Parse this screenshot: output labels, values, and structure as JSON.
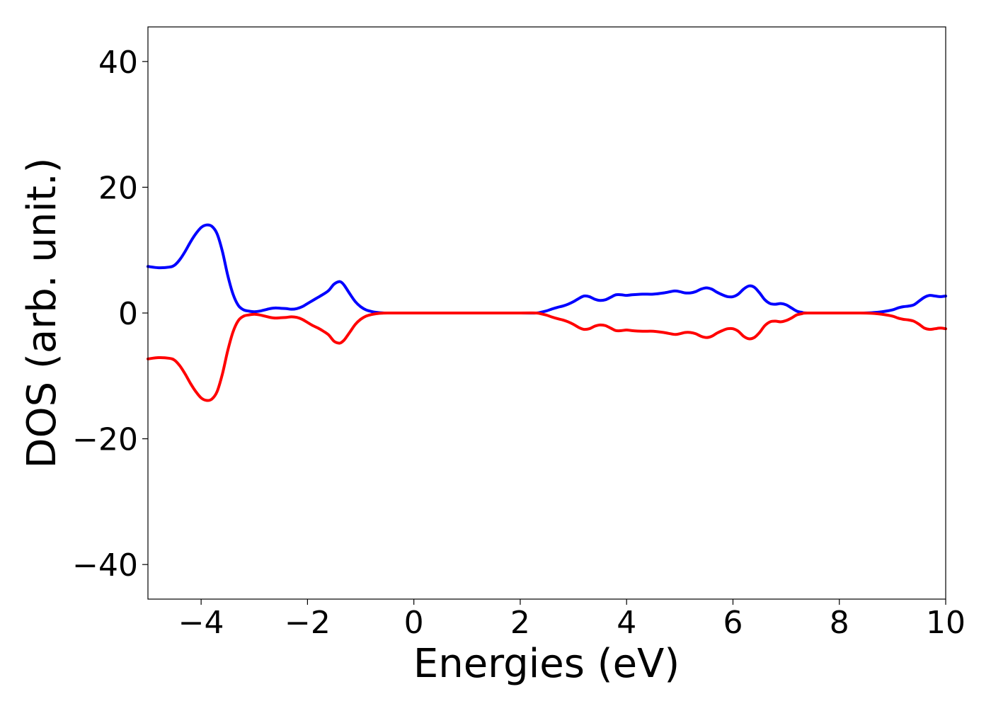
{
  "chart_data": {
    "type": "line",
    "title": "",
    "xlabel": "Energies (eV)",
    "ylabel": "DOS (arb. unit.)",
    "xlim": [
      -5,
      10
    ],
    "ylim": [
      -45.5,
      45.5
    ],
    "grid": false,
    "legend": "none",
    "x_ticks": [
      {
        "value": -4,
        "label": "−4"
      },
      {
        "value": -2,
        "label": "−2"
      },
      {
        "value": 0,
        "label": "0"
      },
      {
        "value": 2,
        "label": "2"
      },
      {
        "value": 4,
        "label": "4"
      },
      {
        "value": 6,
        "label": "6"
      },
      {
        "value": 8,
        "label": "8"
      },
      {
        "value": 10,
        "label": "10"
      }
    ],
    "y_ticks": [
      {
        "value": 40,
        "label": "40"
      },
      {
        "value": 20,
        "label": "20"
      },
      {
        "value": 0,
        "label": "0"
      },
      {
        "value": -20,
        "label": "−20"
      },
      {
        "value": -40,
        "label": "−40"
      }
    ],
    "series": [
      {
        "color": "#0000ff",
        "points": [
          [
            -5.0,
            7.4
          ],
          [
            -4.8,
            7.2
          ],
          [
            -4.6,
            7.3
          ],
          [
            -4.5,
            7.6
          ],
          [
            -4.4,
            8.5
          ],
          [
            -4.3,
            9.8
          ],
          [
            -4.2,
            11.3
          ],
          [
            -4.1,
            12.6
          ],
          [
            -4.0,
            13.6
          ],
          [
            -3.9,
            14.0
          ],
          [
            -3.8,
            13.8
          ],
          [
            -3.7,
            12.6
          ],
          [
            -3.6,
            9.8
          ],
          [
            -3.5,
            6.0
          ],
          [
            -3.4,
            3.0
          ],
          [
            -3.3,
            1.2
          ],
          [
            -3.2,
            0.5
          ],
          [
            -3.1,
            0.3
          ],
          [
            -3.0,
            0.2
          ],
          [
            -2.9,
            0.3
          ],
          [
            -2.8,
            0.5
          ],
          [
            -2.7,
            0.7
          ],
          [
            -2.6,
            0.8
          ],
          [
            -2.5,
            0.75
          ],
          [
            -2.4,
            0.7
          ],
          [
            -2.3,
            0.6
          ],
          [
            -2.2,
            0.7
          ],
          [
            -2.1,
            1.0
          ],
          [
            -2.0,
            1.5
          ],
          [
            -1.9,
            2.0
          ],
          [
            -1.8,
            2.5
          ],
          [
            -1.7,
            3.0
          ],
          [
            -1.6,
            3.6
          ],
          [
            -1.5,
            4.6
          ],
          [
            -1.4,
            5.0
          ],
          [
            -1.35,
            4.8
          ],
          [
            -1.3,
            4.3
          ],
          [
            -1.2,
            3.0
          ],
          [
            -1.1,
            1.8
          ],
          [
            -1.0,
            1.0
          ],
          [
            -0.9,
            0.5
          ],
          [
            -0.8,
            0.25
          ],
          [
            -0.7,
            0.1
          ],
          [
            -0.6,
            0.03
          ],
          [
            -0.5,
            0.0
          ],
          [
            0.0,
            0.0
          ],
          [
            1.0,
            0.0
          ],
          [
            2.0,
            0.0
          ],
          [
            2.3,
            0.0
          ],
          [
            2.4,
            0.15
          ],
          [
            2.5,
            0.35
          ],
          [
            2.6,
            0.65
          ],
          [
            2.7,
            0.9
          ],
          [
            2.8,
            1.1
          ],
          [
            2.9,
            1.4
          ],
          [
            3.0,
            1.8
          ],
          [
            3.1,
            2.3
          ],
          [
            3.2,
            2.7
          ],
          [
            3.3,
            2.6
          ],
          [
            3.4,
            2.2
          ],
          [
            3.5,
            2.0
          ],
          [
            3.6,
            2.1
          ],
          [
            3.7,
            2.5
          ],
          [
            3.8,
            2.9
          ],
          [
            3.9,
            2.9
          ],
          [
            4.0,
            2.8
          ],
          [
            4.1,
            2.9
          ],
          [
            4.3,
            3.0
          ],
          [
            4.5,
            3.0
          ],
          [
            4.7,
            3.2
          ],
          [
            4.9,
            3.5
          ],
          [
            5.0,
            3.4
          ],
          [
            5.1,
            3.2
          ],
          [
            5.2,
            3.2
          ],
          [
            5.3,
            3.4
          ],
          [
            5.4,
            3.8
          ],
          [
            5.5,
            4.0
          ],
          [
            5.6,
            3.8
          ],
          [
            5.7,
            3.3
          ],
          [
            5.8,
            2.9
          ],
          [
            5.9,
            2.6
          ],
          [
            6.0,
            2.6
          ],
          [
            6.1,
            3.0
          ],
          [
            6.2,
            3.8
          ],
          [
            6.3,
            4.3
          ],
          [
            6.4,
            4.1
          ],
          [
            6.5,
            3.2
          ],
          [
            6.6,
            2.1
          ],
          [
            6.7,
            1.5
          ],
          [
            6.8,
            1.4
          ],
          [
            6.9,
            1.5
          ],
          [
            7.0,
            1.3
          ],
          [
            7.1,
            0.8
          ],
          [
            7.2,
            0.3
          ],
          [
            7.3,
            0.1
          ],
          [
            7.4,
            0.0
          ],
          [
            8.0,
            0.0
          ],
          [
            8.4,
            0.0
          ],
          [
            8.6,
            0.05
          ],
          [
            8.8,
            0.2
          ],
          [
            9.0,
            0.5
          ],
          [
            9.1,
            0.8
          ],
          [
            9.2,
            1.0
          ],
          [
            9.3,
            1.1
          ],
          [
            9.4,
            1.3
          ],
          [
            9.5,
            1.9
          ],
          [
            9.6,
            2.5
          ],
          [
            9.7,
            2.8
          ],
          [
            9.8,
            2.7
          ],
          [
            9.9,
            2.6
          ],
          [
            10.0,
            2.7
          ]
        ]
      },
      {
        "color": "#ff0000",
        "points": [
          [
            -5.0,
            -7.3
          ],
          [
            -4.8,
            -7.1
          ],
          [
            -4.6,
            -7.2
          ],
          [
            -4.5,
            -7.5
          ],
          [
            -4.4,
            -8.4
          ],
          [
            -4.3,
            -9.7
          ],
          [
            -4.2,
            -11.2
          ],
          [
            -4.1,
            -12.5
          ],
          [
            -4.0,
            -13.5
          ],
          [
            -3.9,
            -13.9
          ],
          [
            -3.8,
            -13.7
          ],
          [
            -3.7,
            -12.5
          ],
          [
            -3.6,
            -9.7
          ],
          [
            -3.5,
            -6.0
          ],
          [
            -3.4,
            -3.0
          ],
          [
            -3.3,
            -1.2
          ],
          [
            -3.2,
            -0.5
          ],
          [
            -3.1,
            -0.3
          ],
          [
            -3.0,
            -0.2
          ],
          [
            -2.9,
            -0.3
          ],
          [
            -2.8,
            -0.5
          ],
          [
            -2.7,
            -0.7
          ],
          [
            -2.6,
            -0.8
          ],
          [
            -2.5,
            -0.75
          ],
          [
            -2.4,
            -0.7
          ],
          [
            -2.3,
            -0.6
          ],
          [
            -2.2,
            -0.7
          ],
          [
            -2.1,
            -1.0
          ],
          [
            -2.0,
            -1.5
          ],
          [
            -1.9,
            -2.0
          ],
          [
            -1.8,
            -2.4
          ],
          [
            -1.7,
            -2.9
          ],
          [
            -1.6,
            -3.5
          ],
          [
            -1.5,
            -4.5
          ],
          [
            -1.4,
            -4.8
          ],
          [
            -1.35,
            -4.6
          ],
          [
            -1.3,
            -4.2
          ],
          [
            -1.2,
            -3.0
          ],
          [
            -1.1,
            -1.8
          ],
          [
            -1.0,
            -1.0
          ],
          [
            -0.9,
            -0.5
          ],
          [
            -0.8,
            -0.25
          ],
          [
            -0.7,
            -0.1
          ],
          [
            -0.6,
            -0.03
          ],
          [
            -0.5,
            0.0
          ],
          [
            0.0,
            0.0
          ],
          [
            1.0,
            0.0
          ],
          [
            2.0,
            0.0
          ],
          [
            2.3,
            0.0
          ],
          [
            2.4,
            -0.15
          ],
          [
            2.5,
            -0.35
          ],
          [
            2.6,
            -0.65
          ],
          [
            2.7,
            -0.9
          ],
          [
            2.8,
            -1.1
          ],
          [
            2.9,
            -1.4
          ],
          [
            3.0,
            -1.8
          ],
          [
            3.1,
            -2.3
          ],
          [
            3.2,
            -2.6
          ],
          [
            3.3,
            -2.5
          ],
          [
            3.4,
            -2.1
          ],
          [
            3.5,
            -1.9
          ],
          [
            3.6,
            -2.0
          ],
          [
            3.7,
            -2.4
          ],
          [
            3.8,
            -2.8
          ],
          [
            3.9,
            -2.8
          ],
          [
            4.0,
            -2.7
          ],
          [
            4.1,
            -2.8
          ],
          [
            4.3,
            -2.9
          ],
          [
            4.5,
            -2.9
          ],
          [
            4.7,
            -3.1
          ],
          [
            4.9,
            -3.4
          ],
          [
            5.0,
            -3.3
          ],
          [
            5.1,
            -3.1
          ],
          [
            5.2,
            -3.1
          ],
          [
            5.3,
            -3.3
          ],
          [
            5.4,
            -3.7
          ],
          [
            5.5,
            -3.9
          ],
          [
            5.6,
            -3.7
          ],
          [
            5.7,
            -3.2
          ],
          [
            5.8,
            -2.8
          ],
          [
            5.9,
            -2.5
          ],
          [
            6.0,
            -2.5
          ],
          [
            6.1,
            -2.9
          ],
          [
            6.2,
            -3.7
          ],
          [
            6.3,
            -4.1
          ],
          [
            6.4,
            -3.9
          ],
          [
            6.5,
            -3.1
          ],
          [
            6.6,
            -2.0
          ],
          [
            6.7,
            -1.4
          ],
          [
            6.8,
            -1.3
          ],
          [
            6.9,
            -1.4
          ],
          [
            7.0,
            -1.2
          ],
          [
            7.1,
            -0.8
          ],
          [
            7.2,
            -0.3
          ],
          [
            7.3,
            -0.1
          ],
          [
            7.4,
            0.0
          ],
          [
            8.0,
            0.0
          ],
          [
            8.4,
            0.0
          ],
          [
            8.6,
            -0.05
          ],
          [
            8.8,
            -0.2
          ],
          [
            9.0,
            -0.5
          ],
          [
            9.1,
            -0.8
          ],
          [
            9.2,
            -1.0
          ],
          [
            9.3,
            -1.1
          ],
          [
            9.4,
            -1.3
          ],
          [
            9.5,
            -1.8
          ],
          [
            9.6,
            -2.4
          ],
          [
            9.7,
            -2.6
          ],
          [
            9.8,
            -2.5
          ],
          [
            9.9,
            -2.4
          ],
          [
            10.0,
            -2.5
          ]
        ]
      }
    ]
  }
}
